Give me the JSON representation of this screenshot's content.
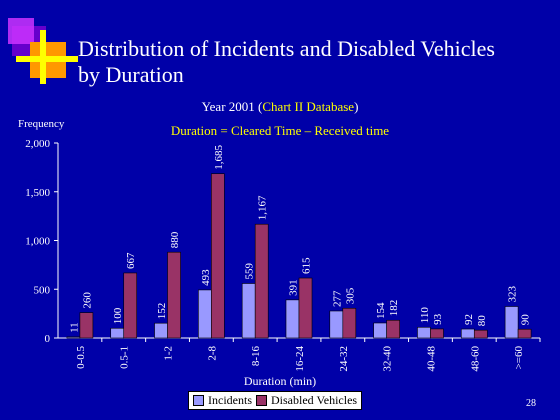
{
  "slide": {
    "title_line1": "Distribution of Incidents and Disabled Vehicles",
    "title_line2": "by Duration",
    "subtitle_pre": "Year 2001 (",
    "subtitle_hl": "Chart II Database",
    "subtitle_post": ")",
    "subtitle2": "Duration = Cleared Time – Received time",
    "page_number": "28"
  },
  "colors": {
    "background": "#0000a8",
    "incidents": "#9999ff",
    "disabled": "#993366"
  },
  "chart_data": {
    "type": "bar",
    "ylabel": "Frequency",
    "xlabel": "Duration (min)",
    "ylim": [
      0,
      2000
    ],
    "yticks": [
      "0",
      "500",
      "1,000",
      "1,500",
      "2,000"
    ],
    "ytick_values": [
      0,
      500,
      1000,
      1500,
      2000
    ],
    "categories": [
      "0-0.5",
      "0.5-1",
      "1-2",
      "2-8",
      "8-16",
      "16-24",
      "24-32",
      "32-40",
      "40-48",
      "48-60",
      ">=60"
    ],
    "series": [
      {
        "name": "Incidents",
        "values": [
          11,
          100,
          152,
          493,
          559,
          391,
          277,
          154,
          110,
          92,
          323
        ],
        "labels": [
          "11",
          "100",
          "152",
          "493",
          "559",
          "391",
          "277",
          "154",
          "110",
          "92",
          "323"
        ]
      },
      {
        "name": "Disabled Vehicles",
        "values": [
          260,
          667,
          880,
          1685,
          1167,
          615,
          305,
          182,
          93,
          80,
          90
        ],
        "labels": [
          "260",
          "667",
          "880",
          "1,685",
          "1,167",
          "615",
          "305",
          "182",
          "93",
          "80",
          "90"
        ]
      }
    ],
    "legend_position": "bottom"
  }
}
